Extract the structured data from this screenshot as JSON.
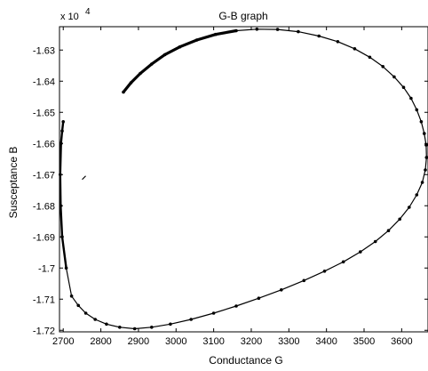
{
  "chart_data": {
    "type": "line",
    "title": "G-B graph",
    "xlabel": "Conductance G",
    "ylabel": "Susceptance B",
    "y_multiplier_label": "x 10",
    "y_multiplier_exponent": "4",
    "xlim": [
      2690,
      3670
    ],
    "ylim": [
      -1.7205,
      -1.6225
    ],
    "x_ticks": [
      2700,
      2800,
      2900,
      3000,
      3100,
      3200,
      3300,
      3400,
      3500,
      3600
    ],
    "x_tick_labels": [
      "2700",
      "2800",
      "2900",
      "3000",
      "3100",
      "3200",
      "3300",
      "3400",
      "3500",
      "3600"
    ],
    "y_ticks": [
      -1.63,
      -1.64,
      -1.65,
      -1.66,
      -1.67,
      -1.68,
      -1.69,
      -1.7,
      -1.71,
      -1.72
    ],
    "y_tick_labels": [
      "-1.63",
      "-1.64",
      "-1.65",
      "-1.66",
      "-1.67",
      "-1.68",
      "-1.69",
      "-1.7",
      "-1.71",
      "-1.72"
    ],
    "grid": false,
    "legend": "none",
    "series": [
      {
        "style": "line-with-dot-markers",
        "color": "#000000",
        "x": [
          2860,
          2880,
          2905,
          2935,
          2970,
          3010,
          3055,
          3105,
          3160,
          3215,
          3270,
          3325,
          3380,
          3430,
          3475,
          3515,
          3550,
          3580,
          3605,
          3625,
          3640,
          3652,
          3660,
          3665,
          3666,
          3663,
          3655,
          3640,
          3620,
          3595,
          3565,
          3530,
          3490,
          3445,
          3395,
          3340,
          3280,
          3220,
          3160,
          3100,
          3040,
          2985,
          2935,
          2890,
          2850,
          2815,
          2785,
          2760,
          2740,
          2722,
          2708,
          2697,
          2693,
          2692,
          2694,
          2697,
          2700
        ],
        "y": [
          -1.6435,
          -1.6405,
          -1.6375,
          -1.6345,
          -1.6315,
          -1.629,
          -1.6268,
          -1.625,
          -1.6238,
          -1.6233,
          -1.6234,
          -1.6241,
          -1.6255,
          -1.6273,
          -1.6296,
          -1.6323,
          -1.6353,
          -1.6386,
          -1.642,
          -1.6455,
          -1.6492,
          -1.653,
          -1.6568,
          -1.6605,
          -1.6645,
          -1.6685,
          -1.6725,
          -1.6765,
          -1.6805,
          -1.6843,
          -1.688,
          -1.6915,
          -1.6948,
          -1.698,
          -1.701,
          -1.704,
          -1.707,
          -1.7097,
          -1.7122,
          -1.7145,
          -1.7165,
          -1.718,
          -1.719,
          -1.7195,
          -1.719,
          -1.718,
          -1.7165,
          -1.7145,
          -1.712,
          -1.709,
          -1.7,
          -1.69,
          -1.68,
          -1.67,
          -1.66,
          -1.656,
          -1.653
        ]
      }
    ],
    "annotations": [
      {
        "x": 2755,
        "y": -1.671,
        "type": "stray-mark"
      }
    ]
  }
}
